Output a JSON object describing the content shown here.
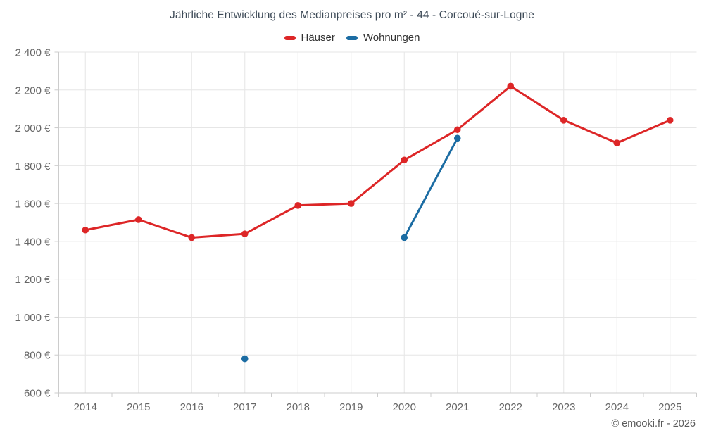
{
  "chart_data": {
    "type": "line",
    "title": "Jährliche Entwicklung des Medianpreises pro m² - 44 - Corcoué-sur-Logne",
    "xlabel": "",
    "ylabel": "",
    "categories": [
      "2014",
      "2015",
      "2016",
      "2017",
      "2018",
      "2019",
      "2020",
      "2021",
      "2022",
      "2023",
      "2024",
      "2025"
    ],
    "series": [
      {
        "name": "Häuser",
        "color": "#dd2627",
        "values": [
          1460,
          1515,
          1420,
          1440,
          1590,
          1600,
          1830,
          1990,
          2220,
          2040,
          1920,
          2040
        ]
      },
      {
        "name": "Wohnungen",
        "color": "#1b6ca3",
        "values": [
          null,
          null,
          null,
          780,
          null,
          null,
          1420,
          1945,
          null,
          null,
          null,
          null
        ]
      }
    ],
    "ylim": [
      600,
      2400
    ],
    "yticks": [
      600,
      800,
      1000,
      1200,
      1400,
      1600,
      1800,
      2000,
      2200,
      2400
    ],
    "ytick_labels": [
      "600 €",
      "800 €",
      "1 000 €",
      "1 200 €",
      "1 400 €",
      "1 600 €",
      "1 800 €",
      "2 000 €",
      "2 200 €",
      "2 400 €"
    ],
    "grid": true,
    "legend_position": "top"
  },
  "footer": "© emooki.fr - 2026",
  "colors": {
    "grid": "#e6e6e6",
    "axis": "#cccccc",
    "tick_label": "#666666",
    "title": "#3d4a57",
    "legend_label": "#333333"
  }
}
